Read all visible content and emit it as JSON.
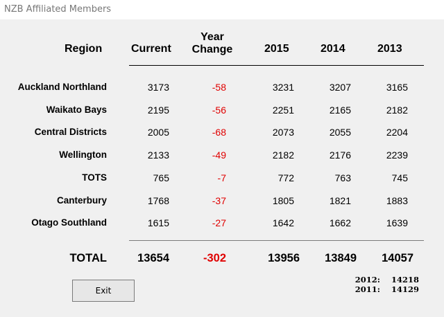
{
  "window": {
    "title": "NZB Affiliated Members"
  },
  "headers": {
    "region": "Region",
    "current": "Current",
    "year_change_line1": "Year",
    "year_change_line2": "Change",
    "y2015": "2015",
    "y2014": "2014",
    "y2013": "2013"
  },
  "rows": [
    {
      "region": "Auckland Northland",
      "current": "3173",
      "change": "-58",
      "y2015": "3231",
      "y2014": "3207",
      "y2013": "3165"
    },
    {
      "region": "Waikato Bays",
      "current": "2195",
      "change": "-56",
      "y2015": "2251",
      "y2014": "2165",
      "y2013": "2182"
    },
    {
      "region": "Central Districts",
      "current": "2005",
      "change": "-68",
      "y2015": "2073",
      "y2014": "2055",
      "y2013": "2204"
    },
    {
      "region": "Wellington",
      "current": "2133",
      "change": "-49",
      "y2015": "2182",
      "y2014": "2176",
      "y2013": "2239"
    },
    {
      "region": "TOTS",
      "current": "765",
      "change": "-7",
      "y2015": "772",
      "y2014": "763",
      "y2013": "745"
    },
    {
      "region": "Canterbury",
      "current": "1768",
      "change": "-37",
      "y2015": "1805",
      "y2014": "1821",
      "y2013": "1883"
    },
    {
      "region": "Otago Southland",
      "current": "1615",
      "change": "-27",
      "y2015": "1642",
      "y2014": "1662",
      "y2013": "1639"
    }
  ],
  "totals": {
    "label": "TOTAL",
    "current": "13654",
    "change": "-302",
    "y2015": "13956",
    "y2014": "13849",
    "y2013": "14057"
  },
  "history": [
    {
      "year": "2012:",
      "value": "14218"
    },
    {
      "year": "2011:",
      "value": "14129"
    }
  ],
  "buttons": {
    "exit": "Exit"
  },
  "colors": {
    "negative": "#e00000",
    "background": "#f0f0f0"
  }
}
